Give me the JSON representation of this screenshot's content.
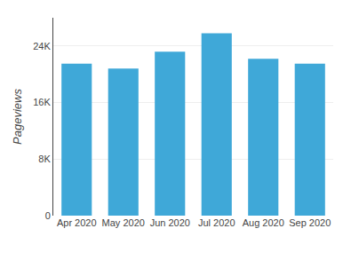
{
  "chart_data": {
    "type": "bar",
    "categories": [
      "Apr 2020",
      "May 2020",
      "Jun 2020",
      "Jul 2020",
      "Aug 2020",
      "Sep 2020"
    ],
    "values": [
      21500,
      20800,
      23200,
      25800,
      22200,
      21500
    ],
    "color": "#3fa8d8",
    "ylabel": "Pageviews",
    "ylim": [
      0,
      28000
    ],
    "yticks": [
      0,
      {
        "value": 8000,
        "label": "8K"
      },
      {
        "value": 16000,
        "label": "16K"
      },
      {
        "value": 24000,
        "label": "24K"
      }
    ],
    "grid": true
  }
}
